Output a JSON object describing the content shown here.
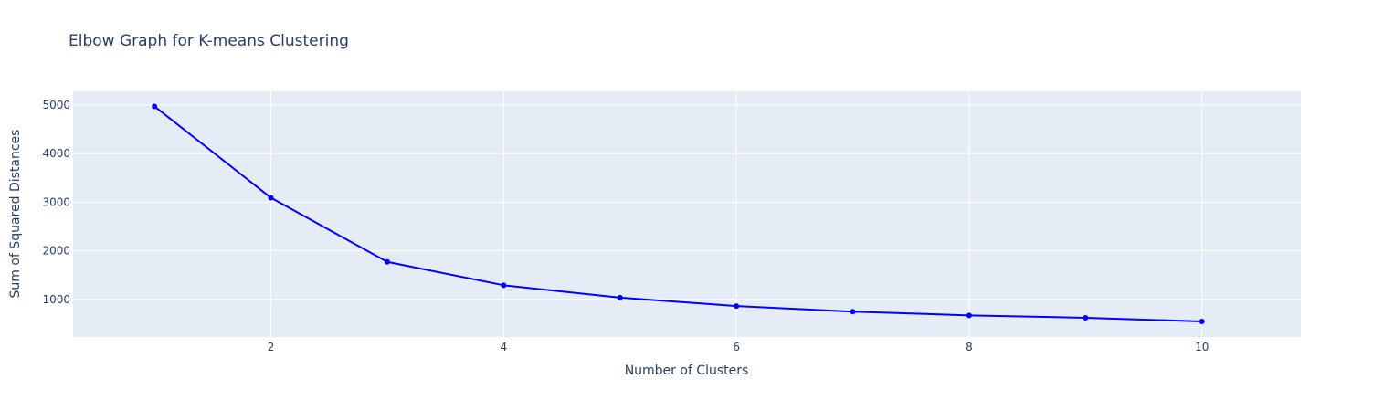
{
  "chart_data": {
    "type": "line",
    "title": "Elbow Graph for K-means Clustering",
    "xlabel": "Number of Clusters",
    "ylabel": "Sum of Squared Distances",
    "x": [
      1,
      2,
      3,
      4,
      5,
      6,
      7,
      8,
      9,
      10
    ],
    "series": [
      {
        "values": [
          4970,
          3090,
          1770,
          1290,
          1035,
          862,
          747,
          670,
          620,
          545
        ],
        "color": "#0000ff",
        "mode": "lines+markers"
      }
    ],
    "xlim": [
      0.3,
      10.85
    ],
    "ylim": [
      225,
      5280
    ],
    "x_ticks": [
      2,
      4,
      6,
      8,
      10
    ],
    "y_ticks": [
      1000,
      2000,
      3000,
      4000,
      5000
    ],
    "grid": true,
    "legend": "none",
    "plot_bg": "#e5ecf6",
    "grid_color": "#ffffff",
    "text_color": "#2a3f5f"
  }
}
